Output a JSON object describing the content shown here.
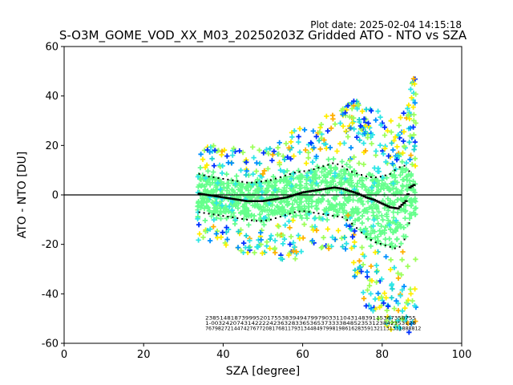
{
  "plot_date": "Plot date: 2025-02-04 14:15:18",
  "chart_data": {
    "type": "scatter",
    "title": "S-O3M_GOME_VOD_XX_M03_20250203Z Gridded ATO - NTO vs SZA",
    "xlabel": "SZA [degree]",
    "ylabel": "ATO - NTO [DU]",
    "xlim": [
      0,
      100
    ],
    "ylim": [
      -60,
      60
    ],
    "xticks": [
      0,
      20,
      40,
      60,
      80,
      100
    ],
    "yticks": [
      -60,
      -40,
      -20,
      0,
      20,
      40,
      60
    ],
    "grid": false,
    "zero_line": 0,
    "colors": {
      "dense": "#66ff8c",
      "cyan": "#2ee6e6",
      "lightgreen": "#9cff5a",
      "yellow": "#ffee00",
      "orange": "#ffb000",
      "blue": "#0090ff",
      "darkblue": "#0030ff",
      "teal": "#1ad2d2"
    },
    "scatter_envelope": {
      "sza": [
        34,
        38,
        42,
        46,
        50,
        54,
        58,
        62,
        66,
        70,
        72,
        74,
        76,
        78,
        80,
        82,
        84,
        86,
        88
      ],
      "upper": [
        20,
        20,
        19,
        19,
        20,
        23,
        28,
        30,
        33,
        36,
        40,
        40,
        38,
        35,
        33,
        30,
        30,
        35,
        50
      ],
      "lower": [
        -19,
        -19,
        -21,
        -24,
        -25,
        -26,
        -26,
        -24,
        -22,
        -22,
        -28,
        -38,
        -45,
        -48,
        -52,
        -55,
        -55,
        -55,
        -58
      ]
    },
    "series": [
      {
        "role": "mean",
        "x": [
          34,
          36,
          38,
          40,
          42,
          44,
          46,
          48,
          50,
          52,
          54,
          56,
          58,
          60,
          62,
          64,
          66,
          68,
          70,
          72,
          74,
          76,
          78,
          80,
          82,
          84,
          86,
          87,
          88
        ],
        "y": [
          0.5,
          0,
          -0.5,
          -1,
          -1.5,
          -2,
          -2.5,
          -2.5,
          -2.5,
          -2,
          -1.5,
          -1,
          0,
          1,
          1.5,
          2,
          2.5,
          3,
          2.5,
          1.5,
          0.5,
          -1,
          -2,
          -3.5,
          -5,
          -5.5,
          -2.5,
          3,
          4
        ]
      },
      {
        "role": "plus_std",
        "x": [
          34,
          36,
          38,
          40,
          42,
          44,
          46,
          48,
          50,
          52,
          54,
          56,
          58,
          60,
          62,
          64,
          66,
          68,
          70,
          72,
          74,
          76,
          78,
          80,
          82,
          84,
          86,
          87,
          88
        ],
        "y": [
          8.5,
          7.5,
          7,
          6.5,
          6,
          5.5,
          5,
          5,
          5.5,
          6,
          7,
          8,
          9,
          9.5,
          10,
          11,
          12,
          13,
          11.5,
          9.5,
          8.5,
          7.5,
          7,
          7.5,
          8.5,
          11,
          12,
          9,
          5
        ]
      },
      {
        "role": "minus_std",
        "x": [
          34,
          36,
          38,
          40,
          42,
          44,
          46,
          48,
          50,
          52,
          54,
          56,
          58,
          60,
          62,
          64,
          66,
          68,
          70,
          72,
          74,
          76,
          78,
          80,
          82,
          84,
          86,
          87,
          88
        ],
        "y": [
          -7,
          -7.5,
          -8,
          -8.5,
          -9,
          -9.5,
          -10,
          -10.5,
          -10.5,
          -10,
          -9,
          -8,
          -7,
          -6.5,
          -7,
          -7.5,
          -8,
          -8.5,
          -9,
          -11,
          -14,
          -17,
          -19,
          -20,
          -21,
          -22,
          -17,
          -10,
          -8
        ]
      }
    ],
    "count_rows": [
      {
        "y": -50.5,
        "x_start": 35.5,
        "x_end": 88.5,
        "text": "2385148187399952017553839494799790331104314839115367358755"
      },
      {
        "y": -52.6,
        "x_start": 35.5,
        "x_end": 88.5,
        "text": "1-00324207431422224236328336536537333384852353123842353128"
      },
      {
        "y": -54.7,
        "x_start": 35.5,
        "x_end": 89.8,
        "text": "76798272144742767720817681179313448497998198616283591321131311888812"
      }
    ]
  }
}
